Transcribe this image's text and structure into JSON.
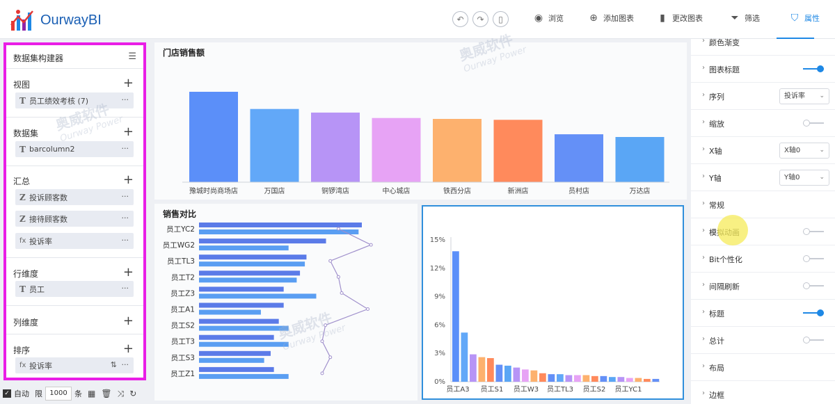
{
  "app": {
    "brand": "OurwayBI"
  },
  "toolbar": {
    "undo_icon": "undo-icon",
    "redo_icon": "redo-icon",
    "device_icon": "mobile-icon",
    "items": [
      {
        "label": "浏览",
        "icon": "eye-icon"
      },
      {
        "label": "添加图表",
        "icon": "plus-circle-icon"
      },
      {
        "label": "更改图表",
        "icon": "bar-chart-icon"
      },
      {
        "label": "筛选",
        "icon": "filter-icon"
      },
      {
        "label": "属性",
        "icon": "shirt-icon",
        "active": true
      }
    ]
  },
  "left_panel": {
    "title": "数据集构建器",
    "sections": {
      "view": {
        "label": "视图",
        "items": [
          {
            "type": "T",
            "label": "员工绩效考核 (7)"
          }
        ]
      },
      "dataset": {
        "label": "数据集",
        "items": [
          {
            "type": "T",
            "label": "barcolumn2"
          }
        ]
      },
      "summary": {
        "label": "汇总",
        "items": [
          {
            "type": "Z",
            "label": "投诉顾客数"
          },
          {
            "type": "Z",
            "label": "接待顾客数"
          },
          {
            "type": "fx",
            "label": "投诉率"
          }
        ]
      },
      "row_dim": {
        "label": "行维度",
        "items": [
          {
            "type": "T",
            "label": "员工"
          }
        ]
      },
      "col_dim": {
        "label": "列维度",
        "items": []
      },
      "sort": {
        "label": "排序",
        "items": [
          {
            "type": "fx",
            "label": "投诉率"
          }
        ]
      }
    },
    "bottom": {
      "auto_label": "自动",
      "limit_label": "限",
      "limit_value": "1000",
      "unit_label": "条"
    }
  },
  "watermark": {
    "cn": "奥威软件",
    "en": "Ourway Power"
  },
  "charts": [
    {
      "type": "bar",
      "title": "门店销售额",
      "categories": [
        "豫城时尚商场店",
        "万国店",
        "铜锣湾店",
        "中心城店",
        "铁西分店",
        "新洲店",
        "员村店",
        "万达店"
      ],
      "values": [
        100,
        81,
        77,
        71,
        70,
        69,
        53,
        50
      ],
      "colors": [
        "#5b8ff9",
        "#62a8f8",
        "#b794f6",
        "#e7a3f5",
        "#fdb16e",
        "#ff8a5c",
        "#6490f7",
        "#5aa6f5"
      ],
      "ylim": [
        0,
        100
      ]
    },
    {
      "type": "bar-horizontal-with-line",
      "title": "销售对比",
      "categories": [
        "员工YC2",
        "员工WG2",
        "员工TL3",
        "员工T2",
        "员工Z3",
        "员工A1",
        "员工S2",
        "员工T3",
        "员工S3",
        "员工Z1"
      ],
      "series": [
        {
          "values": [
            100,
            78,
            66,
            62,
            52,
            52,
            49,
            46,
            44,
            46
          ],
          "color": "#5b7be8"
        },
        {
          "values": [
            98,
            55,
            65,
            60,
            72,
            38,
            55,
            55,
            40,
            55
          ],
          "color": "#5a9ef2"
        }
      ],
      "line_values": [
        60,
        80,
        55,
        60,
        62,
        78,
        52,
        50,
        55,
        50
      ],
      "line_color": "#a090cc"
    },
    {
      "type": "bar",
      "categories_labeled": [
        "员工A3",
        "员工S1",
        "员工W3",
        "员工TL3",
        "员工S2",
        "员工YC1"
      ],
      "values": [
        13.8,
        5.2,
        2.9,
        2.6,
        2.5,
        1.8,
        1.7,
        1.5,
        1.3,
        1.2,
        0.9,
        0.8,
        0.8,
        0.7,
        0.7,
        0.7,
        0.6,
        0.6,
        0.5,
        0.5,
        0.4,
        0.4,
        0.3,
        0.3
      ],
      "colors": [
        "#5b8ff9",
        "#62a8f8",
        "#b794f6",
        "#fdb16e",
        "#ff8a5c",
        "#6490f7",
        "#5aa6f5",
        "#b794f6",
        "#e7a3f5",
        "#fdb16e",
        "#ff8a5c",
        "#6490f7",
        "#62a8f8",
        "#b794f6",
        "#e7a3f5",
        "#fdb16e",
        "#ff8a5c",
        "#6490f7",
        "#5aa6f5",
        "#b794f6",
        "#e7a3f5",
        "#fdb16e",
        "#ff8a5c",
        "#6490f7"
      ],
      "y_ticks": [
        "15%",
        "12%",
        "9%",
        "6%",
        "3%",
        "0%"
      ],
      "ylim": [
        0,
        15
      ]
    }
  ],
  "right_panel": {
    "rows": [
      {
        "label": "颜色渐变",
        "control": "none"
      },
      {
        "label": "图表标题",
        "control": "toggle",
        "on": true
      },
      {
        "label": "序列",
        "control": "select",
        "value": "投诉率"
      },
      {
        "label": "缩放",
        "control": "toggle",
        "on": false
      },
      {
        "label": "X轴",
        "control": "select",
        "value": "X轴0"
      },
      {
        "label": "Y轴",
        "control": "select",
        "value": "Y轴0"
      },
      {
        "label": "常规",
        "control": "none"
      },
      {
        "label": "模拟动画",
        "control": "toggle",
        "on": false
      },
      {
        "label": "Bit个性化",
        "control": "toggle",
        "on": false
      },
      {
        "label": "间隔刷新",
        "control": "toggle",
        "on": false
      },
      {
        "label": "标题",
        "control": "toggle",
        "on": true
      },
      {
        "label": "总计",
        "control": "toggle",
        "on": false
      },
      {
        "label": "布局",
        "control": "none"
      },
      {
        "label": "边框",
        "control": "none"
      }
    ]
  }
}
